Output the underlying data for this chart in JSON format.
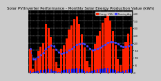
{
  "title": "Solar PV/Inverter Performance - Monthly Solar Energy Production Value (kWh)",
  "bar_values": [
    160,
    25,
    95,
    145,
    175,
    200,
    330,
    300,
    240,
    160,
    70,
    30,
    160,
    185,
    230,
    290,
    320,
    360,
    380,
    330,
    260,
    170,
    75,
    35,
    150,
    195,
    250,
    280,
    340,
    370,
    400,
    350,
    280,
    185,
    90,
    50,
    160,
    205,
    265,
    310
  ],
  "avg_values": [
    160,
    92,
    93,
    106,
    119,
    133,
    161,
    177,
    183,
    178,
    158,
    136,
    128,
    131,
    138,
    150,
    161,
    175,
    190,
    195,
    196,
    191,
    179,
    163,
    153,
    156,
    162,
    168,
    178,
    189,
    202,
    207,
    208,
    203,
    193,
    180,
    173,
    176,
    181,
    188
  ],
  "small_values": [
    10,
    3,
    6,
    9,
    12,
    14,
    18,
    19,
    16,
    10,
    5,
    2,
    10,
    12,
    15,
    18,
    20,
    22,
    23,
    21,
    17,
    11,
    6,
    3,
    9,
    13,
    16,
    19,
    22,
    24,
    25,
    22,
    18,
    12,
    6,
    3,
    10,
    13,
    17,
    20
  ],
  "bar_color": "#ff2200",
  "avg_color": "#4444ff",
  "small_color": "#2222ff",
  "bg_color": "#000000",
  "fig_bg": "#cccccc",
  "grid_color": "#ffffff",
  "ylim": [
    0,
    420
  ],
  "yticks": [
    0,
    50,
    100,
    150,
    200,
    250,
    300,
    350,
    400
  ],
  "title_fontsize": 4.0,
  "legend_labels": [
    "Energy (kWh)",
    "Running Avg"
  ],
  "n_bars": 40
}
